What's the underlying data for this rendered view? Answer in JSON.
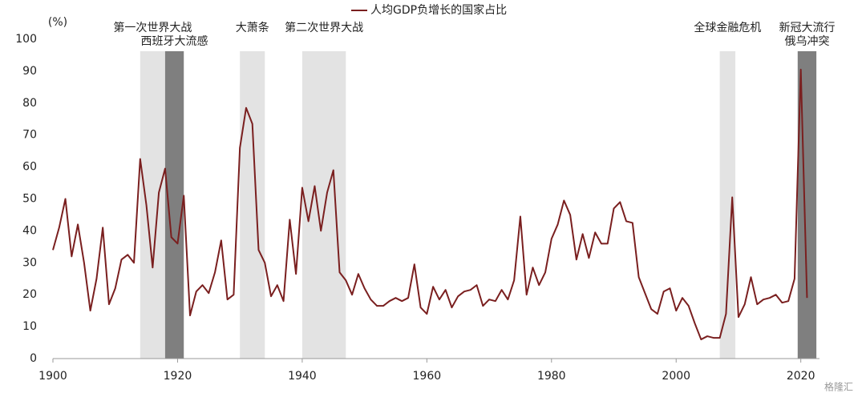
{
  "chart_data": {
    "type": "line",
    "y_unit": "(%)",
    "watermark": "格隆汇",
    "xlim": [
      1900,
      2023
    ],
    "xticks": [
      1900,
      1920,
      1940,
      1960,
      1980,
      2000,
      2020
    ],
    "ylim": [
      0,
      100
    ],
    "yticks": [
      0,
      10,
      20,
      30,
      40,
      50,
      60,
      70,
      80,
      90,
      100
    ],
    "grid": false,
    "legend": "top",
    "x": [
      1900,
      1901,
      1902,
      1903,
      1904,
      1905,
      1906,
      1907,
      1908,
      1909,
      1910,
      1911,
      1912,
      1913,
      1914,
      1915,
      1916,
      1917,
      1918,
      1919,
      1920,
      1921,
      1922,
      1923,
      1924,
      1925,
      1926,
      1927,
      1928,
      1929,
      1930,
      1931,
      1932,
      1933,
      1934,
      1935,
      1936,
      1937,
      1938,
      1939,
      1940,
      1941,
      1942,
      1943,
      1944,
      1945,
      1946,
      1947,
      1948,
      1949,
      1950,
      1951,
      1952,
      1953,
      1954,
      1955,
      1956,
      1957,
      1958,
      1959,
      1960,
      1961,
      1962,
      1963,
      1964,
      1965,
      1966,
      1967,
      1968,
      1969,
      1970,
      1971,
      1972,
      1973,
      1974,
      1975,
      1976,
      1977,
      1978,
      1979,
      1980,
      1981,
      1982,
      1983,
      1984,
      1985,
      1986,
      1987,
      1988,
      1989,
      1990,
      1991,
      1992,
      1993,
      1994,
      1995,
      1996,
      1997,
      1998,
      1999,
      2000,
      2001,
      2002,
      2003,
      2004,
      2005,
      2006,
      2007,
      2008,
      2009,
      2010,
      2011,
      2012,
      2013,
      2014,
      2015,
      2016,
      2017,
      2018,
      2019,
      2020,
      2021
    ],
    "series": [
      {
        "name": "人均GDP负增长的国家占比",
        "color": "#7a1f1f",
        "values": [
          34,
          41,
          50,
          32,
          42,
          30,
          15,
          25,
          41,
          17,
          22,
          31,
          32.5,
          30,
          62.5,
          48,
          28.5,
          52,
          59.5,
          38,
          36,
          51,
          13.5,
          21,
          23,
          20.5,
          27,
          37,
          18.5,
          20,
          66,
          78.5,
          73.5,
          34,
          30,
          19.5,
          23,
          18,
          43.5,
          26.5,
          53.5,
          43,
          54,
          40,
          52,
          59,
          27,
          24.5,
          20,
          26.5,
          22,
          18.5,
          16.5,
          16.5,
          18,
          19,
          18,
          19,
          29.5,
          16,
          14,
          22.5,
          18.5,
          21.5,
          16,
          19.5,
          21,
          21.5,
          23,
          16.5,
          18.5,
          18,
          21.5,
          18.5,
          24.5,
          44.5,
          20,
          28.5,
          23,
          27,
          37.5,
          42,
          49.5,
          45,
          31,
          39,
          31.5,
          39.5,
          36,
          36,
          47,
          49,
          43,
          42.5,
          25.5,
          20.5,
          15.5,
          14,
          21,
          22,
          15,
          19,
          16.5,
          11,
          6,
          7,
          6.5,
          6.5,
          14,
          50.5,
          13,
          17,
          25.5,
          17,
          18.5,
          19,
          20,
          17.5,
          18,
          25,
          90.5,
          19
        ]
      }
    ],
    "shaded_periods": [
      {
        "labels": [
          "第一次世界大战"
        ],
        "start": 1914,
        "end": 1918,
        "color": "#e3e3e3"
      },
      {
        "labels": [
          "西班牙大流感"
        ],
        "start": 1918,
        "end": 1921,
        "color": "#7f7f7f"
      },
      {
        "labels": [
          "大萧条"
        ],
        "start": 1930,
        "end": 1934,
        "color": "#e3e3e3"
      },
      {
        "labels": [
          "第二次世界大战"
        ],
        "start": 1940,
        "end": 1947,
        "color": "#e3e3e3"
      },
      {
        "labels": [
          "全球金融危机"
        ],
        "start": 2007,
        "end": 2009.5,
        "color": "#e3e3e3"
      },
      {
        "labels": [
          "新冠大流行",
          "俄乌冲突"
        ],
        "start": 2019.5,
        "end": 2022.5,
        "color": "#7f7f7f"
      }
    ]
  }
}
